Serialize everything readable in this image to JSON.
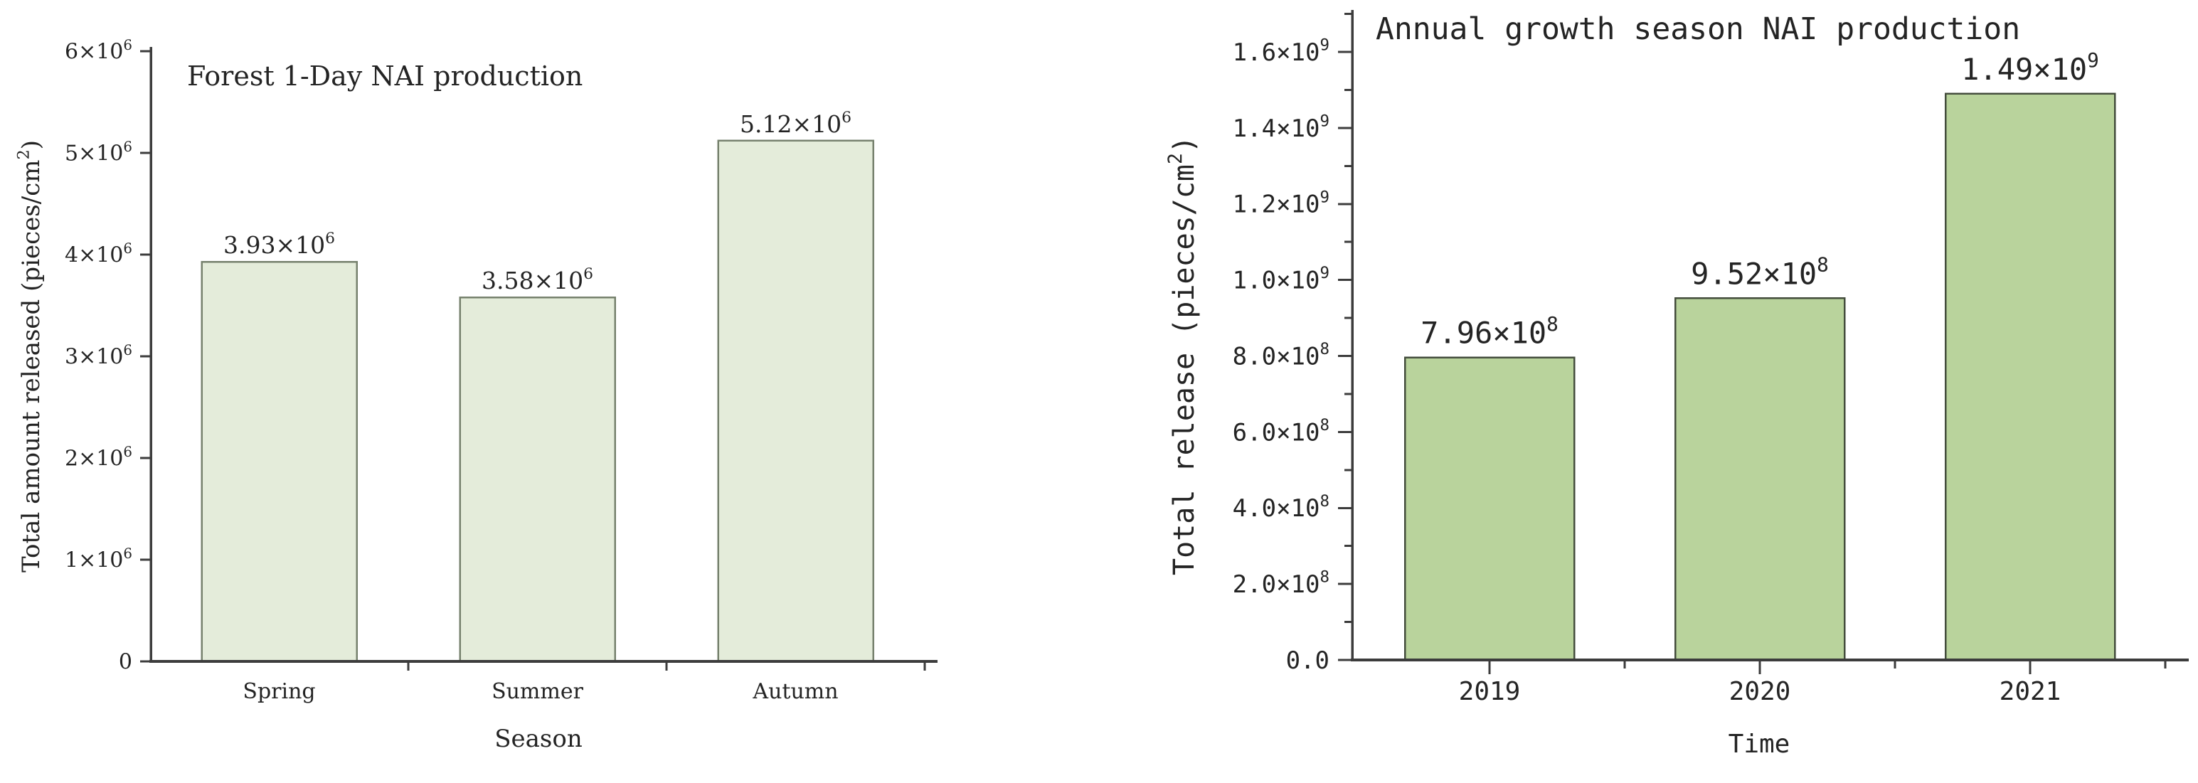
{
  "canvas": {
    "background": "#ffffff"
  },
  "chart_data": [
    {
      "id": "forest-1day",
      "type": "bar",
      "title": "Forest 1-Day NAI production",
      "xlabel": "Season",
      "ylabel": "Total amount released (pieces/cm^{2})",
      "categories": [
        "Spring",
        "Summer",
        "Autumn"
      ],
      "values": [
        3930000,
        3580000,
        5120000
      ],
      "value_labels": [
        "3.93×10^{6}",
        "3.58×10^{6}",
        "5.12×10^{6}"
      ],
      "ylim": [
        0,
        6000000
      ],
      "yticks": {
        "values": [
          0,
          1000000,
          2000000,
          3000000,
          4000000,
          5000000,
          6000000
        ],
        "labels": [
          "0",
          "1×10^{6}",
          "2×10^{6}",
          "3×10^{6}",
          "4×10^{6}",
          "5×10^{6}",
          "6×10^{6}"
        ]
      },
      "minor_yticks": [],
      "grid": false,
      "legend": null,
      "colors": {
        "bar_fill": "#e4ecda",
        "bar_stroke": "#76816d",
        "axis": "#3c3c3c",
        "text": "#242424"
      }
    },
    {
      "id": "annual-growth",
      "type": "bar",
      "title": "Annual growth season NAI production",
      "xlabel": "Time",
      "ylabel": "Total release (pieces/cm^{2})",
      "categories": [
        "2019",
        "2020",
        "2021"
      ],
      "values": [
        796000000,
        952000000,
        1490000000
      ],
      "value_labels": [
        "7.96×10^{8}",
        "9.52×10^{8}",
        "1.49×10^{9}"
      ],
      "ylim": [
        0,
        1600000000
      ],
      "yticks": {
        "values": [
          0,
          200000000,
          400000000,
          600000000,
          800000000,
          1000000000,
          1200000000,
          1400000000,
          1600000000
        ],
        "labels": [
          "0.0",
          "2.0×10^{8}",
          "4.0×10^{8}",
          "6.0×10^{8}",
          "8.0×10^{8}",
          "1.0×10^{9}",
          "1.2×10^{9}",
          "1.4×10^{9}",
          "1.6×10^{9}"
        ]
      },
      "minor_yticks": [
        100000000,
        300000000,
        500000000,
        700000000,
        900000000,
        1100000000,
        1300000000,
        1500000000,
        1700000000
      ],
      "grid": false,
      "legend": null,
      "colors": {
        "bar_fill": "#b9d39c",
        "bar_stroke": "#434c3c",
        "axis": "#3c3c3c",
        "text": "#242424"
      }
    }
  ]
}
